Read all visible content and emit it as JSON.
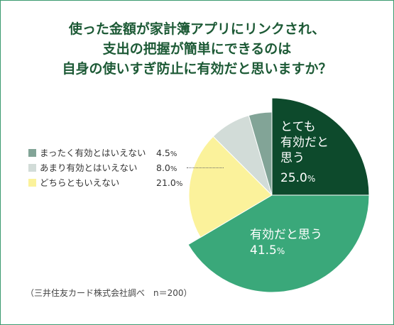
{
  "title_lines": [
    "使った金額が家計簿アプリにリンクされ、",
    "支出の把握が簡単にできるのは",
    "自身の使いすぎ防止に有効だと思いますか？"
  ],
  "source_note": "（三井住友カード株式会社調べ　n＝200）",
  "colors": {
    "frame": "#3b9a6f",
    "title": "#1d5a36",
    "slice_0": "#0d4a2c",
    "slice_1": "#3aa87a",
    "slice_2": "#fbf29b",
    "slice_3": "#d2dcd8",
    "slice_4": "#82a497"
  },
  "chart_data": {
    "type": "pie",
    "title": "使った金額が家計簿アプリにリンクされ、支出の把握が簡単にできるのは自身の使いすぎ防止に有効だと思いますか？",
    "unit": "%",
    "slices": [
      {
        "label": "とても有効だと思う",
        "label_lines": [
          "とても",
          "有効だと",
          "思う"
        ],
        "value": 25.0,
        "value_text": "25.0",
        "exploded": true
      },
      {
        "label": "有効だと思う",
        "label_lines": [
          "有効だと思う"
        ],
        "value": 41.5,
        "value_text": "41.5",
        "exploded": true
      },
      {
        "label": "どちらともいえない",
        "value": 21.0,
        "value_text": "21.0"
      },
      {
        "label": "あまり有効とはいえない",
        "value": 8.0,
        "value_text": "8.0"
      },
      {
        "label": "まったく有効とはいえない",
        "value": 4.5,
        "value_text": "4.5"
      }
    ],
    "legend": [
      {
        "label": "まったく有効とはいえない",
        "value_text": "4.5",
        "unit": "%"
      },
      {
        "label": "あまり有効とはいえない",
        "value_text": "8.0",
        "unit": "%"
      },
      {
        "label": "どちらともいえない",
        "value_text": "21.0",
        "unit": "%"
      }
    ],
    "legend_placement": "left"
  }
}
